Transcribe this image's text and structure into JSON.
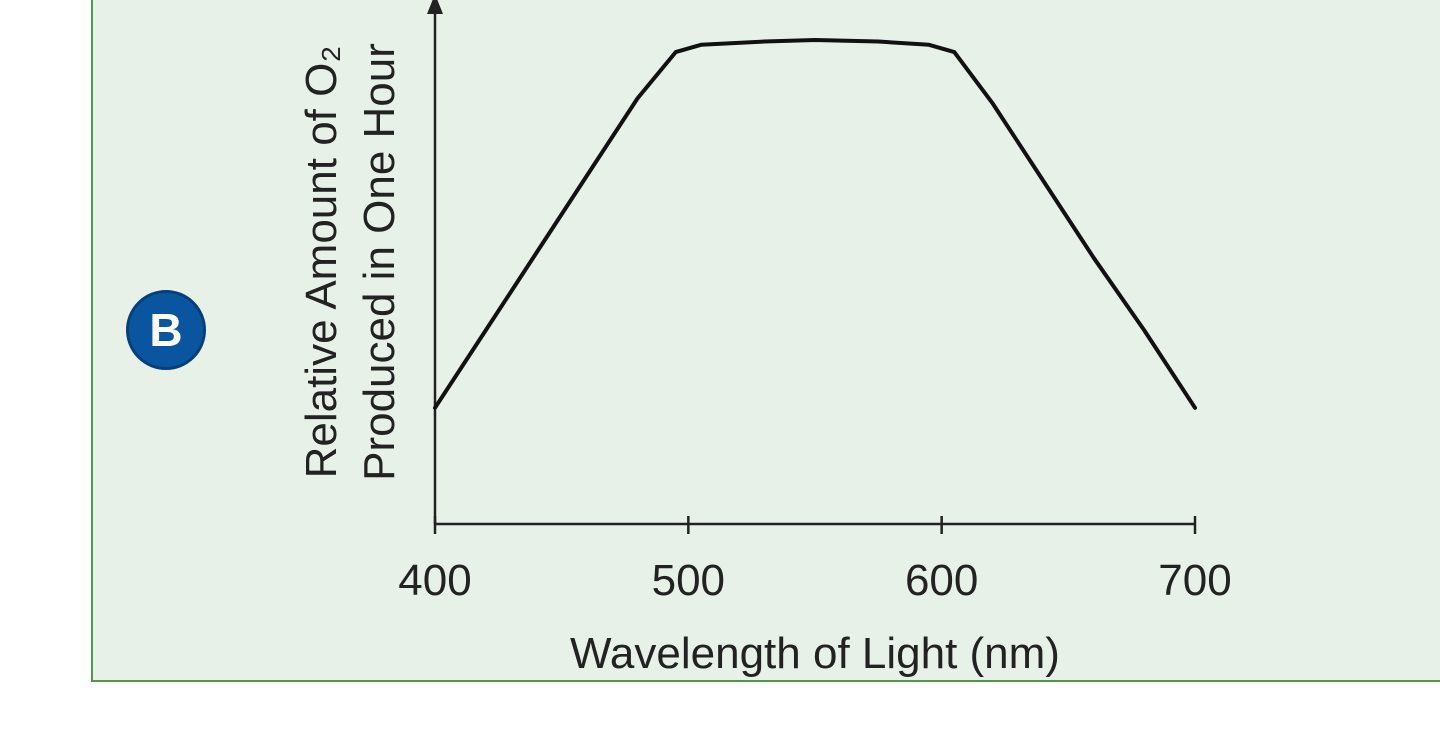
{
  "panel_label": "B",
  "chart_data": {
    "type": "line",
    "title": "",
    "xlabel": "Wavelength of Light (nm)",
    "ylabel_lines": [
      "Relative Amount of O₂",
      "Produced in One Hour"
    ],
    "xlim": [
      400,
      700
    ],
    "ylim": [
      0,
      100
    ],
    "xticks": [
      400,
      500,
      600,
      700
    ],
    "grid": false,
    "series": [
      {
        "x": [
          400,
          420,
          440,
          460,
          480,
          495,
          505,
          530,
          550,
          575,
          595,
          605,
          620,
          640,
          660,
          680,
          700
        ],
        "y": [
          24,
          40,
          56,
          72,
          88,
          97.5,
          99,
          99.7,
          100,
          99.7,
          99,
          97.5,
          87,
          71,
          55,
          40,
          24
        ]
      }
    ],
    "colors": {
      "line": "#111111",
      "axis": "#222222",
      "panel_background": "#e8f1e8",
      "panel_border": "#4a9a4a",
      "badge": "#0a55a0"
    }
  }
}
